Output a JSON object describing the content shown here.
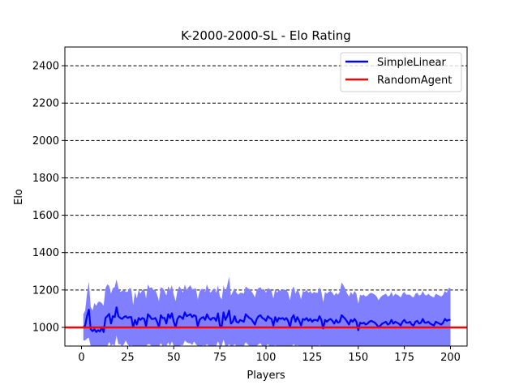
{
  "chart_data": {
    "type": "line",
    "title": "K-2000-2000-SL - Elo Rating",
    "xlabel": "Players",
    "ylabel": "Elo",
    "xlim": [
      -9,
      209
    ],
    "ylim": [
      900,
      2500
    ],
    "xticks": [
      0,
      25,
      50,
      75,
      100,
      125,
      150,
      175,
      200
    ],
    "yticks": [
      1000,
      1200,
      1400,
      1600,
      1800,
      2000,
      2200,
      2400
    ],
    "grid": "horizontal dashed",
    "legend_position": "top-right",
    "series": [
      {
        "name": "SimpleLinear",
        "color": "#0000ff",
        "band_color": "#8080ff",
        "points": [
          [
            1,
            1000
          ],
          [
            2,
            1010
          ],
          [
            3,
            1060
          ],
          [
            4,
            1095
          ],
          [
            5,
            990
          ],
          [
            6,
            980
          ],
          [
            7,
            990
          ],
          [
            8,
            975
          ],
          [
            9,
            985
          ],
          [
            10,
            978
          ],
          [
            11,
            1000
          ],
          [
            12,
            975
          ],
          [
            13,
            1050
          ],
          [
            14,
            1060
          ],
          [
            15,
            1072
          ],
          [
            16,
            1020
          ],
          [
            17,
            1060
          ],
          [
            18,
            1055
          ],
          [
            19,
            1107
          ],
          [
            20,
            1060
          ],
          [
            21,
            1050
          ],
          [
            22,
            1045
          ],
          [
            23,
            1055
          ],
          [
            24,
            1060
          ],
          [
            25,
            1050
          ],
          [
            26,
            1055
          ],
          [
            27,
            1055
          ],
          [
            28,
            1000
          ],
          [
            29,
            1040
          ],
          [
            30,
            1015
          ],
          [
            31,
            1050
          ],
          [
            32,
            1040
          ],
          [
            33,
            1050
          ],
          [
            34,
            1045
          ],
          [
            35,
            1005
          ],
          [
            36,
            1070
          ],
          [
            37,
            1060
          ],
          [
            38,
            1045
          ],
          [
            39,
            1045
          ],
          [
            40,
            1050
          ],
          [
            41,
            1030
          ],
          [
            42,
            1000
          ],
          [
            43,
            1065
          ],
          [
            44,
            1050
          ],
          [
            45,
            1050
          ],
          [
            46,
            1020
          ],
          [
            47,
            1070
          ],
          [
            48,
            1050
          ],
          [
            49,
            1075
          ],
          [
            50,
            1030
          ],
          [
            51,
            1000
          ],
          [
            52,
            1045
          ],
          [
            53,
            1060
          ],
          [
            54,
            1055
          ],
          [
            55,
            1045
          ],
          [
            56,
            1080
          ],
          [
            57,
            1060
          ],
          [
            58,
            1065
          ],
          [
            59,
            1070
          ],
          [
            60,
            1055
          ],
          [
            61,
            1065
          ],
          [
            62,
            1060
          ],
          [
            63,
            1005
          ],
          [
            64,
            1040
          ],
          [
            65,
            1050
          ],
          [
            66,
            1055
          ],
          [
            67,
            1040
          ],
          [
            68,
            1070
          ],
          [
            69,
            1050
          ],
          [
            70,
            1040
          ],
          [
            71,
            1050
          ],
          [
            72,
            1050
          ],
          [
            73,
            1035
          ],
          [
            74,
            1075
          ],
          [
            75,
            1010
          ],
          [
            76,
            1005
          ],
          [
            77,
            1080
          ],
          [
            78,
            1040
          ],
          [
            79,
            1060
          ],
          [
            80,
            1090
          ],
          [
            81,
            1020
          ],
          [
            82,
            1030
          ],
          [
            83,
            1060
          ],
          [
            84,
            1030
          ],
          [
            85,
            1025
          ],
          [
            86,
            1040
          ],
          [
            87,
            1035
          ],
          [
            88,
            1030
          ],
          [
            89,
            1070
          ],
          [
            90,
            1060
          ],
          [
            91,
            1050
          ],
          [
            92,
            1045
          ],
          [
            93,
            1030
          ],
          [
            94,
            1015
          ],
          [
            95,
            1045
          ],
          [
            96,
            1060
          ],
          [
            97,
            1065
          ],
          [
            98,
            1050
          ],
          [
            99,
            1045
          ],
          [
            100,
            1035
          ],
          [
            101,
            1060
          ],
          [
            102,
            1050
          ],
          [
            103,
            1045
          ],
          [
            104,
            1010
          ],
          [
            105,
            1055
          ],
          [
            106,
            1030
          ],
          [
            107,
            1050
          ],
          [
            108,
            1045
          ],
          [
            109,
            1050
          ],
          [
            110,
            1040
          ],
          [
            111,
            1050
          ],
          [
            112,
            1035
          ],
          [
            113,
            1000
          ],
          [
            114,
            1050
          ],
          [
            115,
            1065
          ],
          [
            116,
            1030
          ],
          [
            117,
            1055
          ],
          [
            118,
            1035
          ],
          [
            119,
            1010
          ],
          [
            120,
            1045
          ],
          [
            121,
            1040
          ],
          [
            122,
            1050
          ],
          [
            123,
            1035
          ],
          [
            124,
            1045
          ],
          [
            125,
            1030
          ],
          [
            126,
            1040
          ],
          [
            127,
            1040
          ],
          [
            128,
            1035
          ],
          [
            129,
            1060
          ],
          [
            130,
            1040
          ],
          [
            131,
            995
          ],
          [
            132,
            1040
          ],
          [
            133,
            1030
          ],
          [
            134,
            1040
          ],
          [
            135,
            1045
          ],
          [
            136,
            1035
          ],
          [
            137,
            1020
          ],
          [
            138,
            1040
          ],
          [
            139,
            1025
          ],
          [
            140,
            1030
          ],
          [
            141,
            1065
          ],
          [
            142,
            1055
          ],
          [
            143,
            1045
          ],
          [
            144,
            1030
          ],
          [
            145,
            1015
          ],
          [
            146,
            1040
          ],
          [
            147,
            1030
          ],
          [
            148,
            1045
          ],
          [
            149,
            1030
          ],
          [
            150,
            985
          ],
          [
            151,
            1025
          ],
          [
            152,
            1020
          ],
          [
            153,
            1025
          ],
          [
            154,
            1015
          ],
          [
            155,
            1020
          ],
          [
            156,
            1030
          ],
          [
            157,
            1035
          ],
          [
            158,
            1030
          ],
          [
            159,
            1025
          ],
          [
            160,
            1015
          ],
          [
            161,
            1000
          ],
          [
            162,
            1010
          ],
          [
            163,
            1020
          ],
          [
            164,
            1025
          ],
          [
            165,
            1030
          ],
          [
            166,
            1015
          ],
          [
            167,
            1020
          ],
          [
            168,
            1040
          ],
          [
            169,
            1020
          ],
          [
            170,
            1030
          ],
          [
            171,
            1025
          ],
          [
            172,
            1020
          ],
          [
            173,
            1010
          ],
          [
            174,
            1030
          ],
          [
            175,
            1040
          ],
          [
            176,
            1025
          ],
          [
            177,
            1025
          ],
          [
            178,
            1030
          ],
          [
            179,
            1015
          ],
          [
            180,
            1010
          ],
          [
            181,
            1030
          ],
          [
            182,
            1035
          ],
          [
            183,
            1020
          ],
          [
            184,
            1025
          ],
          [
            185,
            1045
          ],
          [
            186,
            1025
          ],
          [
            187,
            1025
          ],
          [
            188,
            1030
          ],
          [
            189,
            1020
          ],
          [
            190,
            1015
          ],
          [
            191,
            1010
          ],
          [
            192,
            1030
          ],
          [
            193,
            1025
          ],
          [
            194,
            1020
          ],
          [
            195,
            1015
          ],
          [
            196,
            1025
          ],
          [
            197,
            1045
          ],
          [
            198,
            1035
          ],
          [
            199,
            1040
          ],
          [
            200,
            1040
          ]
        ],
        "band_halfwidth": [
          70,
          80,
          120,
          150,
          120,
          110,
          140,
          140,
          150,
          160,
          130,
          140,
          160,
          170,
          150,
          160,
          150,
          160,
          150,
          150,
          140,
          150,
          145,
          130,
          140,
          155,
          150,
          120,
          150,
          140,
          150,
          140,
          150,
          160,
          150,
          160,
          150,
          170,
          155,
          150,
          145,
          140,
          150,
          160,
          145,
          150,
          150,
          150,
          150,
          145,
          140,
          150,
          160,
          150,
          140,
          150,
          140,
          150,
          155,
          150,
          140,
          150,
          145,
          150,
          155,
          150,
          150,
          160,
          150,
          145,
          150,
          160,
          150,
          150,
          155,
          145,
          145,
          150,
          165,
          180,
          150,
          160,
          150,
          155,
          150,
          145,
          150,
          150,
          150,
          150,
          155,
          150,
          150,
          145,
          155,
          150,
          150,
          150,
          160,
          150,
          150,
          155,
          150,
          145,
          150,
          155,
          150,
          150,
          150,
          160,
          150,
          150,
          145,
          150,
          155,
          150,
          150,
          150,
          140,
          150,
          150,
          150,
          150,
          150,
          150,
          150,
          145,
          150,
          155,
          150,
          140,
          150,
          150,
          150,
          150,
          150,
          150,
          145,
          150,
          160,
          175,
          170,
          160,
          150,
          150,
          150,
          145,
          150,
          150,
          140,
          150,
          150,
          150,
          150,
          150,
          150,
          150,
          150,
          150,
          150,
          145,
          150,
          150,
          150,
          150,
          150,
          150,
          150,
          145,
          150,
          150,
          150,
          150,
          150,
          150,
          150,
          150,
          145,
          150,
          150,
          150,
          150,
          150,
          150,
          150,
          150,
          145,
          150,
          150,
          150,
          150,
          150,
          150,
          150,
          150,
          150,
          150,
          150,
          170,
          170
        ]
      },
      {
        "name": "RandomAgent",
        "color": "#ff0000",
        "points": [
          [
            -9,
            1000
          ],
          [
            209,
            1000
          ]
        ]
      }
    ]
  }
}
